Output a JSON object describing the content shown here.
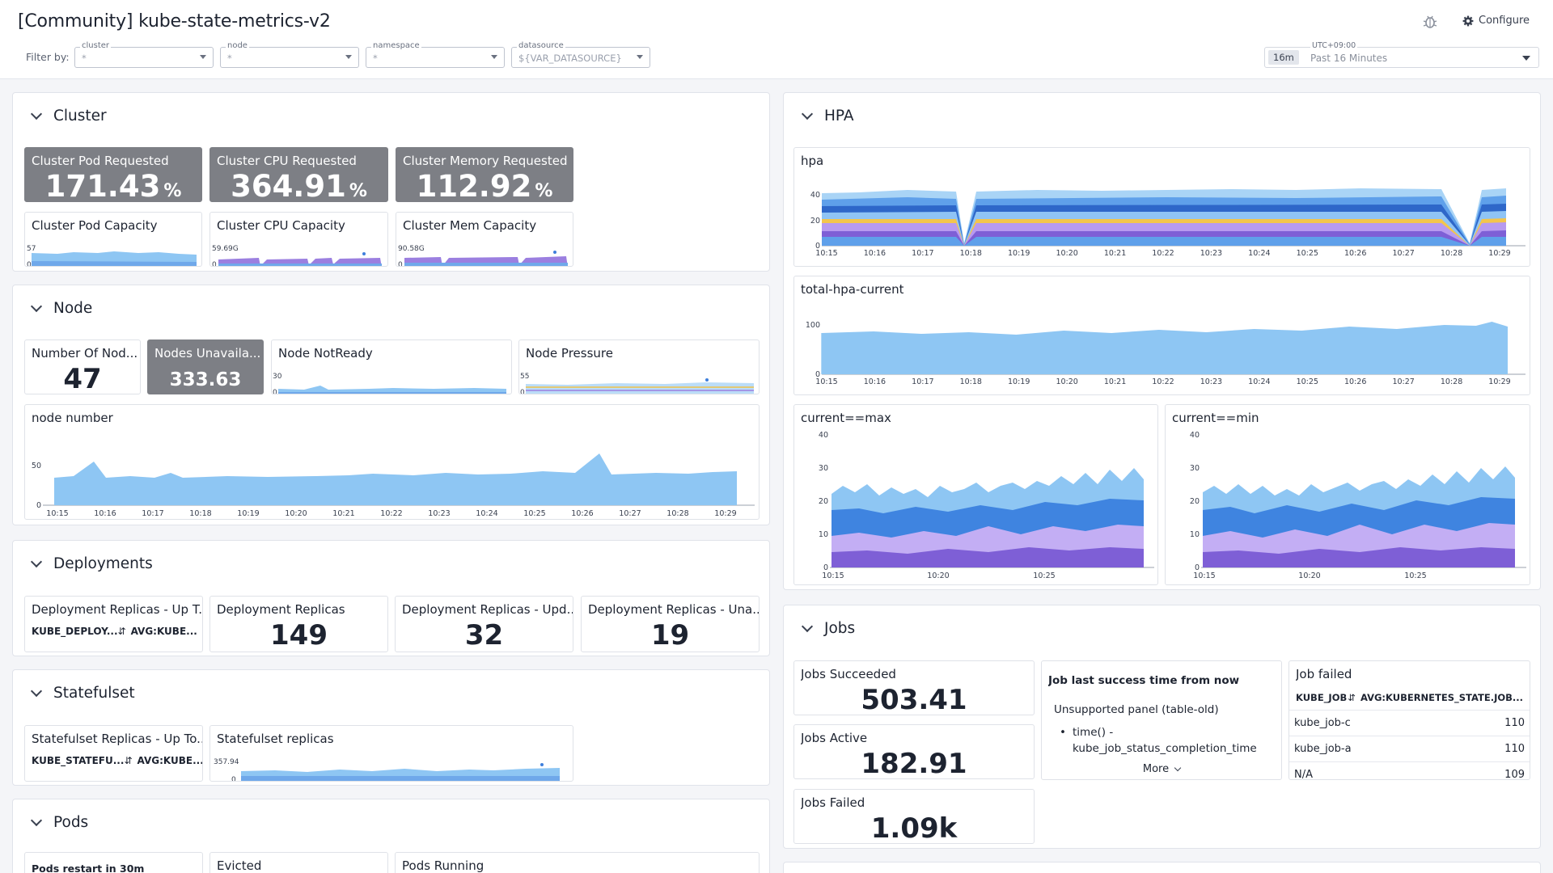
{
  "header": {
    "title": "[Community] kube-state-metrics-v2",
    "filter_by": "Filter by:",
    "filters": [
      {
        "label": "cluster",
        "value": "*"
      },
      {
        "label": "node",
        "value": "*"
      },
      {
        "label": "namespace",
        "value": "*"
      },
      {
        "label": "datasource",
        "value": "${VAR_DATASOURCE}"
      }
    ],
    "timezone": "UTC+09:00",
    "time_chip": "16m",
    "time_range": "Past 16 Minutes",
    "configure_label": "Configure"
  },
  "colors": {
    "accent_blue": "#7fbdf2",
    "gray_tile": "#7d7f85",
    "purple": "#9b7fe0",
    "dark_blue": "#3f7fdc"
  },
  "cluster": {
    "title": "Cluster",
    "pod_requested": {
      "title": "Cluster Pod Requested",
      "value": "171.43",
      "unit": "%"
    },
    "cpu_requested": {
      "title": "Cluster CPU Requested",
      "value": "364.91",
      "unit": "%"
    },
    "mem_requested": {
      "title": "Cluster Memory Requested",
      "value": "112.92",
      "unit": "%"
    },
    "pod_capacity": {
      "title": "Cluster Pod Capacity",
      "ymax": "57",
      "ymin": "0"
    },
    "cpu_capacity": {
      "title": "Cluster CPU Capacity",
      "ymax": "59.69G",
      "ymin": "0"
    },
    "mem_capacity": {
      "title": "Cluster Mem Capacity",
      "ymax": "90.58G",
      "ymin": "0"
    }
  },
  "node": {
    "title": "Node",
    "number_of_nodes": {
      "title": "Number Of Nod...",
      "value": "47"
    },
    "nodes_unavailable": {
      "title": "Nodes Unavaila...",
      "value": "333.63"
    },
    "not_ready": {
      "title": "Node NotReady",
      "ymax": "30",
      "ymin": "0"
    },
    "pressure": {
      "title": "Node Pressure",
      "ymax": "55",
      "ymin": "0"
    },
    "node_number": {
      "title": "node number",
      "yticks": [
        "50",
        "0"
      ]
    }
  },
  "deployments": {
    "title": "Deployments",
    "up_to_date": {
      "title": "Deployment Replicas - Up T...",
      "col1": "KUBE_DEPLOY...",
      "col2": "AVG:KUBE..."
    },
    "replicas": {
      "title": "Deployment Replicas",
      "value": "149"
    },
    "updated": {
      "title": "Deployment Replicas - Upd...",
      "value": "32"
    },
    "unavailable": {
      "title": "Deployment Replicas - Una...",
      "value": "19"
    }
  },
  "statefulset": {
    "title": "Statefulset",
    "up_to_date": {
      "title": "Statefulset Replicas - Up To...",
      "col1": "KUBE_STATEFU...",
      "col2": "AVG:KUBE..."
    },
    "replicas": {
      "title": "Statefulset replicas",
      "ymax": "357.94",
      "ymin": "0"
    }
  },
  "pods": {
    "title": "Pods",
    "restart": {
      "title": "Pods restart in 30m"
    },
    "evicted": {
      "title": "Evicted"
    },
    "running": {
      "title": "Pods Running"
    }
  },
  "hpa": {
    "title": "HPA",
    "hpa_chart": {
      "title": "hpa",
      "yticks": [
        "40",
        "20",
        "0"
      ]
    },
    "total_current": {
      "title": "total-hpa-current",
      "yticks": [
        "100",
        "0"
      ]
    },
    "current_max": {
      "title": "current==max",
      "yticks": [
        "40",
        "30",
        "20",
        "10",
        "0"
      ],
      "xticks": [
        "10:15",
        "10:20",
        "10:25"
      ]
    },
    "current_min": {
      "title": "current==min",
      "yticks": [
        "40",
        "30",
        "20",
        "10",
        "0"
      ],
      "xticks": [
        "10:15",
        "10:20",
        "10:25"
      ]
    }
  },
  "jobs": {
    "title": "Jobs",
    "succeeded": {
      "title": "Jobs Succeeded",
      "value": "503.41"
    },
    "active": {
      "title": "Jobs Active",
      "value": "182.91"
    },
    "failed": {
      "title": "Jobs Failed",
      "value": "1.09k"
    },
    "last_success": {
      "title": "Job last success time from now",
      "message": "Unsupported panel (table-old)",
      "bullet_line1": "time() -",
      "bullet_line2": "kube_job_status_completion_time",
      "more": "More"
    },
    "job_failed": {
      "title": "Job failed",
      "col1": "KUBE_JOB",
      "col2": "AVG:KUBERNETES_STATE.JOB...",
      "rows": [
        {
          "name": "kube_job-c",
          "value": "110"
        },
        {
          "name": "kube_job-a",
          "value": "110"
        },
        {
          "name": "N/A",
          "value": "109"
        }
      ]
    }
  },
  "time_ticks": [
    "10:15",
    "10:16",
    "10:17",
    "10:18",
    "10:19",
    "10:20",
    "10:21",
    "10:22",
    "10:23",
    "10:24",
    "10:25",
    "10:26",
    "10:27",
    "10:28",
    "10:29"
  ]
}
